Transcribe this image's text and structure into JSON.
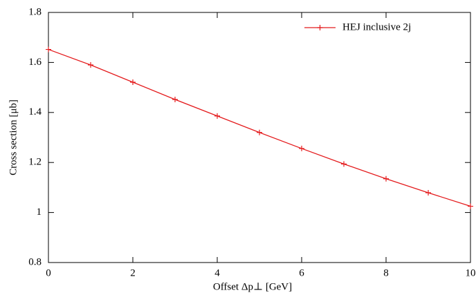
{
  "chart_data": {
    "type": "line",
    "x_label": "Offset Δp⊥ [GeV]",
    "y_label": "Cross section [μb]",
    "x": [
      0,
      1,
      2,
      3,
      4,
      5,
      6,
      7,
      8,
      9,
      10
    ],
    "series": [
      {
        "name": "HEJ inclusive 2j",
        "color": "#e41a1c",
        "values": [
          1.652,
          1.59,
          1.521,
          1.452,
          1.386,
          1.32,
          1.256,
          1.194,
          1.135,
          1.079,
          1.025
        ]
      }
    ],
    "xlim": [
      0,
      10
    ],
    "xticks": [
      0,
      2,
      4,
      6,
      8,
      10
    ],
    "ylim": [
      0.8,
      1.8
    ],
    "yticks": [
      0.8,
      1,
      1.2,
      1.4,
      1.6,
      1.8
    ],
    "legend": "upper right",
    "marker": "plus"
  }
}
